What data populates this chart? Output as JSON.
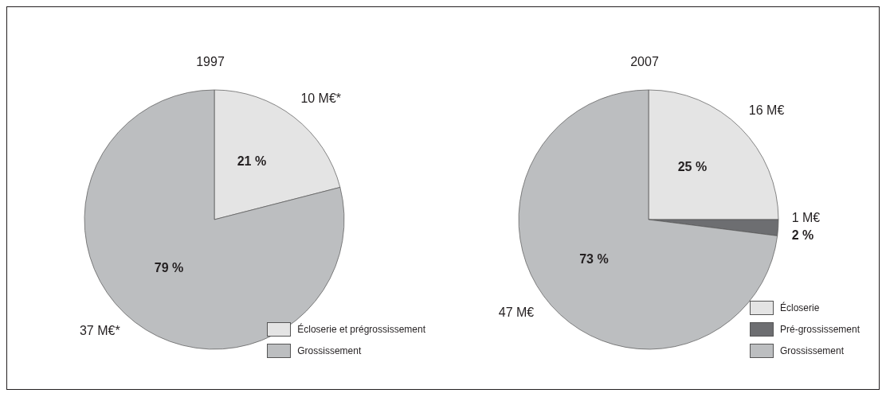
{
  "chart_data": [
    {
      "type": "pie",
      "title": "1997",
      "categories": [
        "Écloserie et prégrossissement",
        "Grossissement"
      ],
      "values": [
        21,
        79
      ],
      "colors": [
        "#e4e4e4",
        "#bcbec0"
      ],
      "value_labels": [
        "21 %",
        "79 %"
      ],
      "annotations": [
        "10 M€*",
        "37 M€*"
      ],
      "legend": "bottom right"
    },
    {
      "type": "pie",
      "title": "2007",
      "categories": [
        "Écloserie",
        "Pré-grossissement",
        "Grossissement"
      ],
      "values": [
        25,
        2,
        73
      ],
      "colors": [
        "#e4e4e4",
        "#6d6e71",
        "#bcbec0"
      ],
      "value_labels": [
        "25 %",
        "2 %",
        "73 %"
      ],
      "annotations": [
        "16 M€",
        "1 M€",
        "47 M€"
      ],
      "legend": "bottom right"
    }
  ]
}
